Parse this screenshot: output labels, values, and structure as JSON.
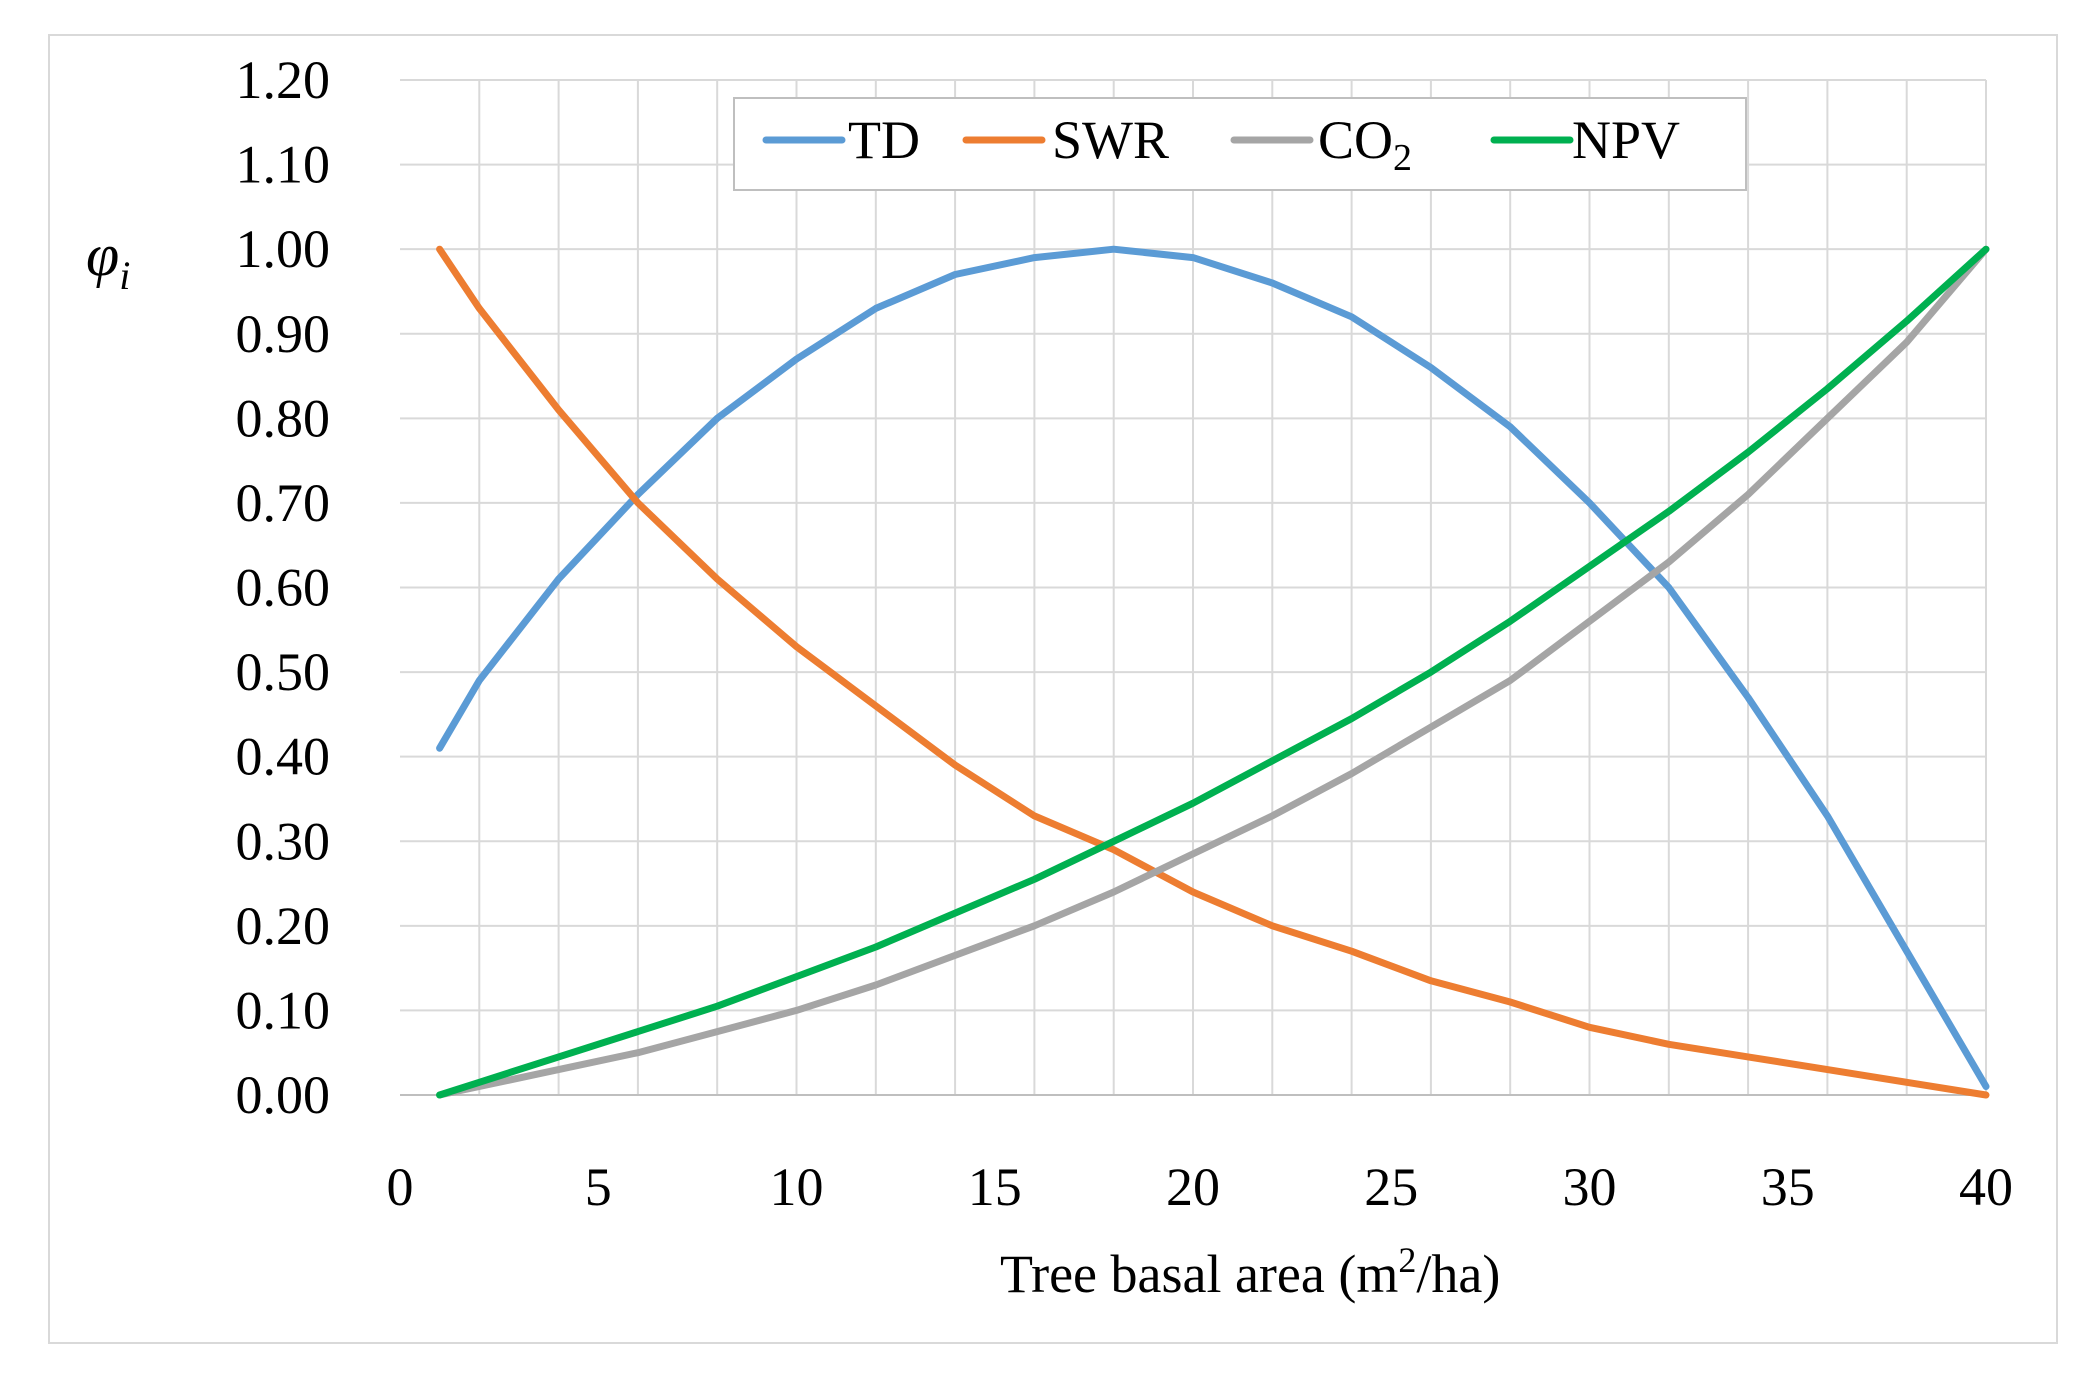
{
  "chart_data": {
    "type": "line",
    "title": "",
    "xlabel_parts": [
      "Tree basal area (m",
      "2",
      "/ha)"
    ],
    "ylabel_parts": [
      "φ",
      "i"
    ],
    "xlim": [
      0,
      40
    ],
    "ylim": [
      0,
      1.2
    ],
    "x_ticks": [
      "0",
      "5",
      "10",
      "15",
      "20",
      "25",
      "30",
      "35",
      "40"
    ],
    "y_ticks": [
      "0.00",
      "0.10",
      "0.20",
      "0.30",
      "0.40",
      "0.50",
      "0.60",
      "0.70",
      "0.80",
      "0.90",
      "1.00",
      "1.10",
      "1.20"
    ],
    "grid": true,
    "legend_position": "top-center",
    "x": [
      1,
      2,
      4,
      6,
      8,
      10,
      12,
      14,
      16,
      18,
      20,
      22,
      24,
      26,
      28,
      30,
      32,
      34,
      36,
      38,
      40
    ],
    "series": [
      {
        "name": "TD",
        "label_parts": [
          "TD"
        ],
        "color": "#5b9bd5",
        "values": [
          0.41,
          0.49,
          0.61,
          0.71,
          0.8,
          0.87,
          0.93,
          0.97,
          0.99,
          1.0,
          0.99,
          0.96,
          0.92,
          0.86,
          0.79,
          0.7,
          0.6,
          0.47,
          0.33,
          0.17,
          0.01
        ]
      },
      {
        "name": "SWR",
        "label_parts": [
          "SWR"
        ],
        "color": "#ed7d31",
        "values": [
          1.0,
          0.93,
          0.81,
          0.7,
          0.61,
          0.53,
          0.46,
          0.39,
          0.33,
          0.29,
          0.24,
          0.2,
          0.17,
          0.135,
          0.11,
          0.08,
          0.06,
          0.045,
          0.03,
          0.015,
          0.0
        ]
      },
      {
        "name": "CO2",
        "label_parts": [
          "CO",
          "2"
        ],
        "color": "#a5a5a5",
        "values": [
          0.0,
          0.01,
          0.03,
          0.05,
          0.075,
          0.1,
          0.13,
          0.165,
          0.2,
          0.24,
          0.285,
          0.33,
          0.38,
          0.435,
          0.49,
          0.56,
          0.63,
          0.71,
          0.8,
          0.89,
          1.0
        ]
      },
      {
        "name": "NPV",
        "label_parts": [
          "NPV"
        ],
        "color": "#00b050",
        "values": [
          0.0,
          0.015,
          0.045,
          0.075,
          0.105,
          0.14,
          0.175,
          0.215,
          0.255,
          0.3,
          0.345,
          0.395,
          0.445,
          0.5,
          0.56,
          0.625,
          0.69,
          0.76,
          0.835,
          0.915,
          1.0
        ]
      }
    ]
  }
}
